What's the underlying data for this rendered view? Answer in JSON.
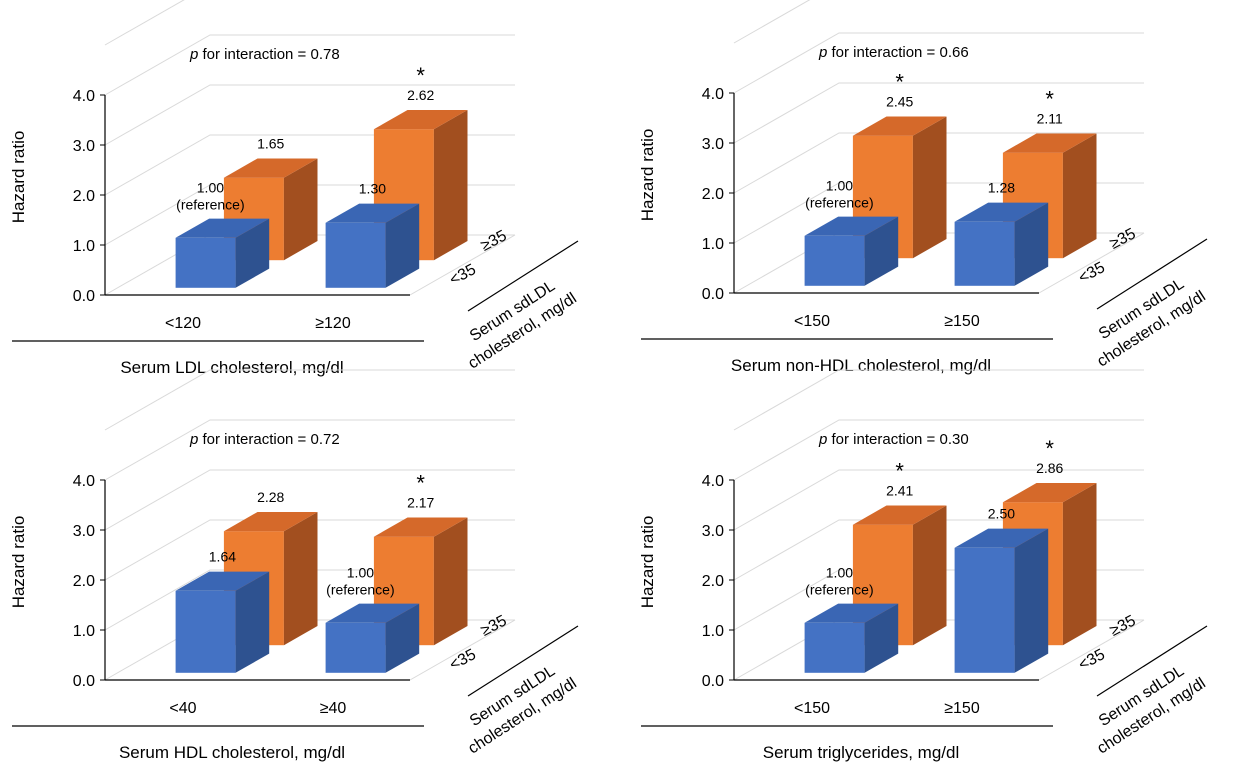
{
  "colors": {
    "blue_front": "#4472C4",
    "blue_top": "#3A66B4",
    "blue_side": "#2E5290",
    "orange_front": "#ED7D31",
    "orange_top": "#D5692A",
    "orange_side": "#A24F1F",
    "grid": "#D9D9D9"
  },
  "chart_data": [
    {
      "type": "bar",
      "title": "",
      "ylabel": "Hazard ratio",
      "xlabel": "Serum LDL cholesterol, mg/dl",
      "zlabel_line1": "Serum sdLDL",
      "zlabel_line2": "cholesterol, mg/dl",
      "interaction_p": "p",
      "interaction_text": " for interaction = 0.78",
      "ylim": [
        0,
        4
      ],
      "yticks": [
        "0.0",
        "1.0",
        "2.0",
        "3.0",
        "4.0"
      ],
      "categories": [
        "<120",
        "≥120"
      ],
      "series": [
        {
          "name": "<35",
          "values": [
            1.0,
            1.3
          ],
          "labels": [
            "1.00",
            "1.30"
          ],
          "notes": [
            "(reference)",
            ""
          ],
          "significant": [
            false,
            false
          ]
        },
        {
          "name": "≥35",
          "values": [
            1.65,
            2.62
          ],
          "labels": [
            "1.65",
            "2.62"
          ],
          "notes": [
            "",
            ""
          ],
          "significant": [
            false,
            true
          ]
        }
      ],
      "asterisk": "*"
    },
    {
      "type": "bar",
      "title": "",
      "ylabel": "Hazard ratio",
      "xlabel": "Serum non-HDL cholesterol, mg/dl",
      "zlabel_line1": "Serum sdLDL",
      "zlabel_line2": "cholesterol, mg/dl",
      "interaction_p": "p",
      "interaction_text": " for interaction = 0.66",
      "ylim": [
        0,
        4
      ],
      "yticks": [
        "0.0",
        "1.0",
        "2.0",
        "3.0",
        "4.0"
      ],
      "categories": [
        "<150",
        "≥150"
      ],
      "series": [
        {
          "name": "<35",
          "values": [
            1.0,
            1.28
          ],
          "labels": [
            "1.00",
            "1.28"
          ],
          "notes": [
            "(reference)",
            ""
          ],
          "significant": [
            false,
            false
          ]
        },
        {
          "name": "≥35",
          "values": [
            2.45,
            2.11
          ],
          "labels": [
            "2.45",
            "2.11"
          ],
          "notes": [
            "",
            ""
          ],
          "significant": [
            true,
            true
          ]
        }
      ],
      "asterisk": "*"
    },
    {
      "type": "bar",
      "title": "",
      "ylabel": "Hazard ratio",
      "xlabel": "Serum HDL cholesterol, mg/dl",
      "zlabel_line1": "Serum sdLDL",
      "zlabel_line2": "cholesterol, mg/dl",
      "interaction_p": "p",
      "interaction_text": " for interaction = 0.72",
      "ylim": [
        0,
        4
      ],
      "yticks": [
        "0.0",
        "1.0",
        "2.0",
        "3.0",
        "4.0"
      ],
      "categories": [
        "<40",
        "≥40"
      ],
      "series": [
        {
          "name": "<35",
          "values": [
            1.64,
            1.0
          ],
          "labels": [
            "1.64",
            "1.00"
          ],
          "notes": [
            "",
            "(reference)"
          ],
          "significant": [
            false,
            false
          ]
        },
        {
          "name": "≥35",
          "values": [
            2.28,
            2.17
          ],
          "labels": [
            "2.28",
            "2.17"
          ],
          "notes": [
            "",
            ""
          ],
          "significant": [
            false,
            true
          ]
        }
      ],
      "asterisk": "*"
    },
    {
      "type": "bar",
      "title": "",
      "ylabel": "Hazard ratio",
      "xlabel": "Serum triglycerides, mg/dl",
      "zlabel_line1": "Serum sdLDL",
      "zlabel_line2": "cholesterol, mg/dl",
      "interaction_p": "p",
      "interaction_text": " for interaction = 0.30",
      "ylim": [
        0,
        4
      ],
      "yticks": [
        "0.0",
        "1.0",
        "2.0",
        "3.0",
        "4.0"
      ],
      "categories": [
        "<150",
        "≥150"
      ],
      "series": [
        {
          "name": "<35",
          "values": [
            1.0,
            2.5
          ],
          "labels": [
            "1.00",
            "2.50"
          ],
          "notes": [
            "(reference)",
            ""
          ],
          "significant": [
            false,
            false
          ]
        },
        {
          "name": "≥35",
          "values": [
            2.41,
            2.86
          ],
          "labels": [
            "2.41",
            "2.86"
          ],
          "notes": [
            "",
            ""
          ],
          "significant": [
            true,
            true
          ]
        }
      ],
      "asterisk": "*"
    }
  ]
}
